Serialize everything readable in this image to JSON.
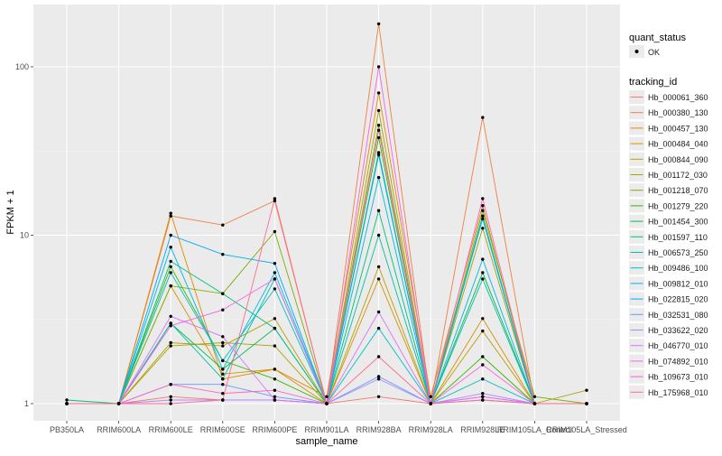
{
  "chart_data": {
    "type": "line",
    "title": "",
    "xlabel": "sample_name",
    "ylabel": "FPKM + 1",
    "y_scale": "log10",
    "ylim": [
      0.9,
      200
    ],
    "yticks": [
      1,
      10,
      100
    ],
    "ytick_labels": [
      "1",
      "10",
      "100"
    ],
    "background": "#ebebeb",
    "grid": true,
    "legend_position": "right",
    "categories": [
      "PB350LA",
      "RRIM600LA",
      "RRIM600LE",
      "RRIM600SE",
      "RRIM600PE",
      "RRIM901LA",
      "RRIM928BA",
      "RRIM928LA",
      "RRIM928LE",
      "RRIM105LA_Control",
      "RRIM105LA_Stressed"
    ],
    "point_legend": {
      "title": "quant_status",
      "label": "OK"
    },
    "series_legend_title": "tracking_id",
    "series": [
      {
        "name": "Hb_000061_360",
        "color": "#F8766D",
        "values": [
          1,
          1,
          1.1,
          1.05,
          1.05,
          1,
          1.1,
          1,
          1.1,
          1,
          1
        ]
      },
      {
        "name": "Hb_000380_130",
        "color": "#F07F3F",
        "values": [
          1,
          1,
          13,
          11.5,
          16,
          1,
          180,
          1,
          50,
          1,
          1
        ]
      },
      {
        "name": "Hb_000457_130",
        "color": "#E58700",
        "values": [
          1,
          1,
          13.5,
          1.4,
          1.6,
          1.1,
          70,
          1.1,
          15,
          1,
          1
        ]
      },
      {
        "name": "Hb_000484_040",
        "color": "#D39200",
        "values": [
          1,
          1,
          5,
          1.5,
          1.6,
          1,
          5.5,
          1,
          3.2,
          1,
          1
        ]
      },
      {
        "name": "Hb_000844_090",
        "color": "#BE9C00",
        "values": [
          1,
          1,
          2.3,
          2.2,
          3.2,
          1,
          6.5,
          1,
          2.7,
          1,
          1
        ]
      },
      {
        "name": "Hb_001172_030",
        "color": "#A3A500",
        "values": [
          1,
          1,
          2.2,
          2.3,
          2.2,
          1,
          55,
          1,
          11,
          1,
          1.2
        ]
      },
      {
        "name": "Hb_001218_070",
        "color": "#7CAE00",
        "values": [
          1,
          1,
          5,
          4.5,
          10.5,
          1,
          45,
          1,
          14,
          1.1,
          1
        ]
      },
      {
        "name": "Hb_001279_220",
        "color": "#39B600",
        "values": [
          1,
          1,
          6.5,
          1.8,
          1.4,
          1,
          38,
          1,
          1.9,
          1,
          1
        ]
      },
      {
        "name": "Hb_001454_300",
        "color": "#00BB4E",
        "values": [
          1,
          1,
          3,
          1.6,
          2.8,
          1,
          30,
          1,
          6,
          1,
          1
        ]
      },
      {
        "name": "Hb_001597_110",
        "color": "#00BF7D",
        "values": [
          1.05,
          1,
          7,
          4.5,
          2.8,
          1,
          14,
          1,
          13,
          1,
          1
        ]
      },
      {
        "name": "Hb_006573_250",
        "color": "#00C1A3",
        "values": [
          1,
          1,
          3,
          1.4,
          5.5,
          1,
          10,
          1,
          5.5,
          1,
          1
        ]
      },
      {
        "name": "Hb_009486_100",
        "color": "#00BFC4",
        "values": [
          1,
          1,
          6,
          1.8,
          4.8,
          1,
          2.8,
          1,
          1.4,
          1,
          1
        ]
      },
      {
        "name": "Hb_009812_010",
        "color": "#00B8E7",
        "values": [
          1,
          1,
          8.5,
          1.6,
          6,
          1,
          22,
          1,
          7.2,
          1,
          1
        ]
      },
      {
        "name": "Hb_022815_020",
        "color": "#00A9FF",
        "values": [
          1,
          1,
          10,
          7.7,
          6.8,
          1,
          31,
          1,
          12.5,
          1,
          1
        ]
      },
      {
        "name": "Hb_032531_080",
        "color": "#619CFF",
        "values": [
          1,
          1,
          1.3,
          1.3,
          1.1,
          1,
          1.45,
          1,
          1.05,
          1,
          1
        ]
      },
      {
        "name": "Hb_033622_020",
        "color": "#AE87FF",
        "values": [
          1,
          1,
          1.05,
          1.05,
          1.05,
          1,
          1.4,
          1,
          1.15,
          1,
          1
        ]
      },
      {
        "name": "Hb_046770_010",
        "color": "#DB72FB",
        "values": [
          1,
          1,
          3.3,
          2.5,
          1.05,
          1,
          3.5,
          1,
          1.1,
          1,
          1
        ]
      },
      {
        "name": "Hb_074892_010",
        "color": "#F564E3",
        "values": [
          1,
          1,
          2.9,
          3.6,
          5.5,
          1,
          100,
          1,
          1.7,
          1,
          1
        ]
      },
      {
        "name": "Hb_109673_010",
        "color": "#FF61C3",
        "values": [
          1,
          1,
          1.3,
          1.15,
          1.2,
          1,
          42,
          1,
          16.5,
          1,
          1
        ]
      },
      {
        "name": "Hb_175968_010",
        "color": "#FF6C90",
        "values": [
          1,
          1,
          1,
          1.05,
          16.5,
          1,
          1.9,
          1,
          1.05,
          1,
          1
        ]
      }
    ]
  }
}
